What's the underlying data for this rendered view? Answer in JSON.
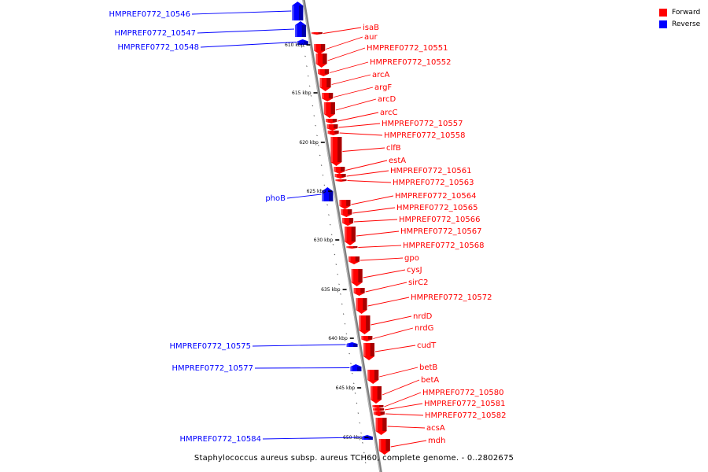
{
  "legend": {
    "forward_label": "Forward",
    "reverse_label": "Reverse",
    "forward_color": "#ff0000",
    "reverse_color": "#0000ff"
  },
  "caption": "Staphylococcus aureus subsp. aureus TCH60, complete genome. - 0..2802675",
  "scale_labels": [
    "610 kbp",
    "615 kbp",
    "620 kbp",
    "625 kbp",
    "630 kbp",
    "635 kbp",
    "640 kbp",
    "645 kbp",
    "650 kbp"
  ],
  "genes": [
    {
      "name": "HMPREF0772_10546",
      "strand": "reverse"
    },
    {
      "name": "HMPREF0772_10547",
      "strand": "reverse"
    },
    {
      "name": "HMPREF0772_10548",
      "strand": "reverse"
    },
    {
      "name": "isaB",
      "strand": "forward"
    },
    {
      "name": "aur",
      "strand": "forward"
    },
    {
      "name": "HMPREF0772_10551",
      "strand": "forward"
    },
    {
      "name": "HMPREF0772_10552",
      "strand": "forward"
    },
    {
      "name": "arcA",
      "strand": "forward"
    },
    {
      "name": "argF",
      "strand": "forward"
    },
    {
      "name": "arcD",
      "strand": "forward"
    },
    {
      "name": "arcC",
      "strand": "forward"
    },
    {
      "name": "HMPREF0772_10557",
      "strand": "forward"
    },
    {
      "name": "HMPREF0772_10558",
      "strand": "forward"
    },
    {
      "name": "clfB",
      "strand": "forward"
    },
    {
      "name": "estA",
      "strand": "forward"
    },
    {
      "name": "HMPREF0772_10561",
      "strand": "forward"
    },
    {
      "name": "HMPREF0772_10563",
      "strand": "forward"
    },
    {
      "name": "phoB",
      "strand": "reverse"
    },
    {
      "name": "HMPREF0772_10564",
      "strand": "forward"
    },
    {
      "name": "HMPREF0772_10565",
      "strand": "forward"
    },
    {
      "name": "HMPREF0772_10566",
      "strand": "forward"
    },
    {
      "name": "HMPREF0772_10567",
      "strand": "forward"
    },
    {
      "name": "HMPREF0772_10568",
      "strand": "forward"
    },
    {
      "name": "gpo",
      "strand": "forward"
    },
    {
      "name": "cysJ",
      "strand": "forward"
    },
    {
      "name": "sirC2",
      "strand": "forward"
    },
    {
      "name": "HMPREF0772_10572",
      "strand": "forward"
    },
    {
      "name": "nrdD",
      "strand": "forward"
    },
    {
      "name": "nrdG",
      "strand": "forward"
    },
    {
      "name": "HMPREF0772_10575",
      "strand": "reverse"
    },
    {
      "name": "cudT",
      "strand": "forward"
    },
    {
      "name": "HMPREF0772_10577",
      "strand": "reverse"
    },
    {
      "name": "betB",
      "strand": "forward"
    },
    {
      "name": "betA",
      "strand": "forward"
    },
    {
      "name": "HMPREF0772_10580",
      "strand": "forward"
    },
    {
      "name": "HMPREF0772_10581",
      "strand": "forward"
    },
    {
      "name": "HMPREF0772_10582",
      "strand": "forward"
    },
    {
      "name": "acsA",
      "strand": "forward"
    },
    {
      "name": "HMPREF0772_10584",
      "strand": "reverse"
    },
    {
      "name": "mdh",
      "strand": "forward"
    }
  ]
}
